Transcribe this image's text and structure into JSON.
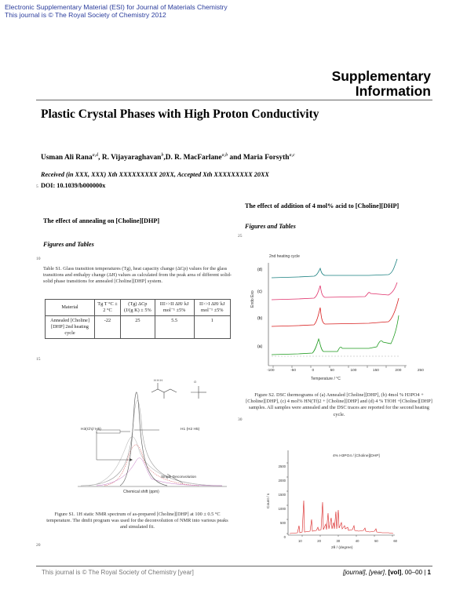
{
  "esi_line1": "Electronic Supplementary Material (ESI) for Journal of Materials Chemistry",
  "esi_line2": "This journal is © The Royal Society of Chemistry 2012",
  "supp_line1": "Supplementary",
  "supp_line2": "Information",
  "title": "Plastic Crystal Phases with High Proton Conductivity",
  "authors": {
    "a1": "Usman Ali Rana",
    "a1_sup": "a,d",
    "sep1": ", ",
    "a2": "R. Vijayaraghavan",
    "a2_sup": "b",
    "sep2": ",",
    "a3": "D. R. MacFarlane",
    "a3_sup": "a,b",
    "sep3": " and ",
    "a4": "Maria Forsyth",
    "a4_sup": "a,c"
  },
  "received": "Received (in XXX, XXX) Xth XXXXXXXXX 20XX, Accepted Xth XXXXXXXXX 20XX",
  "doi": "DOI: 10.1039/b000000x",
  "line_numbers": {
    "n5": "5",
    "n10": "10",
    "n15": "15",
    "n20": "20",
    "n25": "25",
    "n30": "30"
  },
  "left": {
    "heading": "The effect of annealing on [Choline][DHP]",
    "subheading": "Figures and Tables",
    "table_caption": "Table S1. Glass transition temperatures (Tg), heat capacity change (ΔCp) values for the glass transitions and enthalpy change (ΔH) values as calculated from the peak area of different solid-solid phase transitions for annealed [Choline][DHP] system.",
    "table": {
      "headers": [
        "Material",
        "Tg T °C ± 2 °C",
        "(Tg) ΔCp (J/(g K) ± 5%",
        "III>>II ΔH/ kJ mol⁻¹ ±5%",
        "II>>I ΔH/ kJ mol⁻¹ ±5%"
      ],
      "row": [
        "Annealed [Choline][DHP] 2nd heating cycle",
        "-22",
        "25",
        "5.5",
        "1"
      ]
    },
    "figure_caption": "Figure S1. 1H static NMR spectrum of as-prepared [Choline][DHP] at 100 ± 0.5 °C temperature. The dmfit program was used for the deconvolution of NMR into various peaks and simulated fit.",
    "nmr": {
      "label_left": "H3(Ch)/ H5)",
      "label_right": "H1 (H2 H5)",
      "label_single": "Single Deconvolution",
      "xlabel": "Chemical shift (ppm)"
    }
  },
  "right": {
    "heading": "The effect of addition of 4 mol% acid to [Choline][DHP]",
    "subheading": "Figures and Tables",
    "dsc": {
      "top_label": "2nd heating cycle",
      "ylabel": "Endo Exo",
      "xlabel": "Temperature / °C",
      "curve_labels": [
        "(a)",
        "(b)",
        "(c)",
        "(d)"
      ],
      "ticks": [
        "-100",
        "-50",
        "0",
        "50",
        "100",
        "150",
        "200",
        "250"
      ]
    },
    "figure_caption": "Figure S2. DSC thermograms of (a) Annealed [Choline][DHP], (b) 4mol % H3PO4 + [Choline][DHP], (c) 4 mol% HN(Tf)2 + [Choline][DHP] and (d) 4 % TfOH +[Choline][DHP] samples. All samples were annealed and the DSC traces are reported for the second heating cycle.",
    "xrd": {
      "legend": "4% H3PO4 / [Choline][DHP]",
      "ylabel": "Count / s",
      "xlabel": "2θ / (degree)",
      "yticks": [
        "2500",
        "2000",
        "1500",
        "1000",
        "500",
        "0"
      ],
      "xticks": [
        "10",
        "20",
        "30",
        "40",
        "50",
        "60"
      ]
    }
  },
  "footer": {
    "left": "This journal is © The Royal Society of Chemistry [year]",
    "journal": "[journal]",
    "sep1": ", ",
    "year": "[year]",
    "sep2": ", ",
    "vol": "[vol]",
    "pages": ", 00–00  |  ",
    "page": "1"
  },
  "colors": {
    "esi_blue": "#2a3c9c",
    "nmr_grey": "#666666",
    "nmr_red": "#d04040",
    "dsc_green": "#1e9a1e",
    "dsc_red": "#d81e1e",
    "dsc_red2": "#e0306a",
    "dsc_teal": "#1a8080",
    "xrd_red": "#d81e1e"
  }
}
